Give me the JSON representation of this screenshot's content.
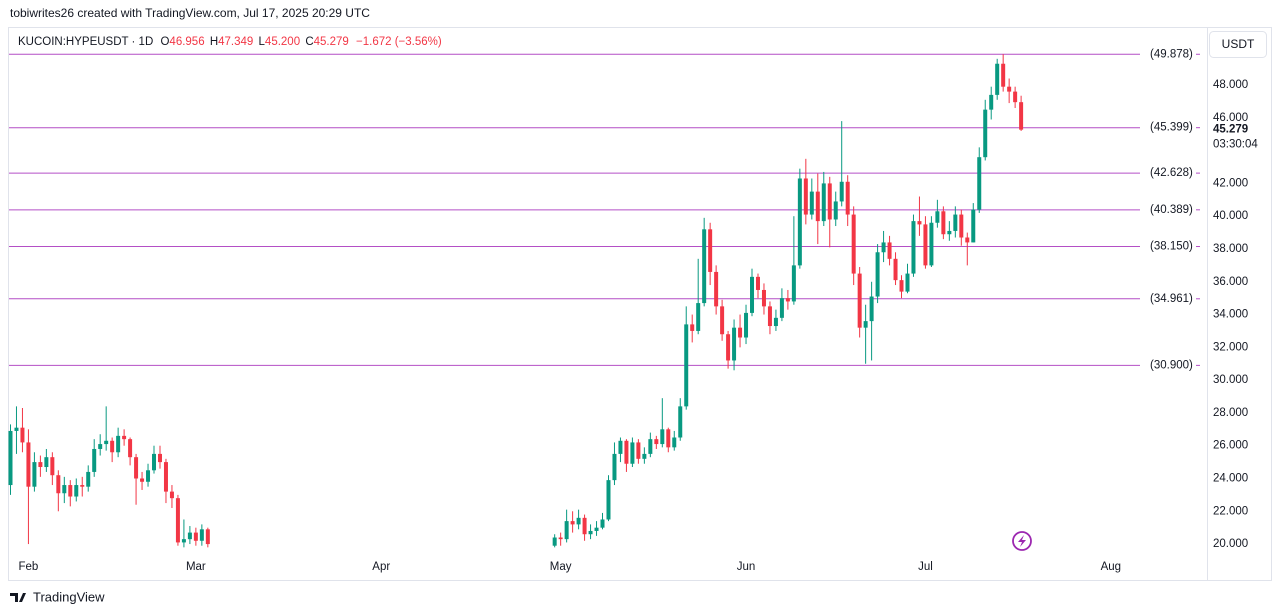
{
  "chart_data": {
    "type": "candlestick",
    "attribution": "tobiwrites26 created with TradingView.com, Jul 17, 2025 20:29 UTC",
    "legend": {
      "symbol": "KUCOIN:HYPEUSDT · 1D",
      "fields": [
        {
          "key": "O",
          "value": "46.956"
        },
        {
          "key": "H",
          "value": "47.349"
        },
        {
          "key": "L",
          "value": "45.200"
        },
        {
          "key": "C",
          "value": "45.279"
        }
      ],
      "change": "−1.672 (−3.56%)"
    },
    "currency": "USDT",
    "last_price": 45.279,
    "last_price_label": "45.279",
    "countdown": "03:30:04",
    "brand": "TradingView",
    "up_color": "#089981",
    "down_color": "#f23645",
    "level_color": "#b44fc6",
    "grid": false,
    "ylim": [
      19.15,
      51.48
    ],
    "yticks": [
      {
        "value": 20,
        "label": "20.000"
      },
      {
        "value": 22,
        "label": "22.000"
      },
      {
        "value": 24,
        "label": "24.000"
      },
      {
        "value": 26,
        "label": "26.000"
      },
      {
        "value": 28,
        "label": "28.000"
      },
      {
        "value": 30,
        "label": "30.000"
      },
      {
        "value": 32,
        "label": "32.000"
      },
      {
        "value": 34,
        "label": "34.000"
      },
      {
        "value": 36,
        "label": "36.000"
      },
      {
        "value": 38,
        "label": "38.000"
      },
      {
        "value": 40,
        "label": "40.000"
      },
      {
        "value": 42,
        "label": "42.000"
      },
      {
        "value": 46,
        "label": "46.000"
      },
      {
        "value": 48,
        "label": "48.000"
      }
    ],
    "levels": [
      {
        "value": 49.878,
        "label": "(49.878)"
      },
      {
        "value": 45.399,
        "label": "(45.399)"
      },
      {
        "value": 42.628,
        "label": "(42.628)"
      },
      {
        "value": 40.389,
        "label": "(40.389)"
      },
      {
        "value": 38.15,
        "label": "(38.150)"
      },
      {
        "value": 34.961,
        "label": "(34.961)"
      },
      {
        "value": 30.9,
        "label": "(30.900)"
      }
    ],
    "categories": [
      null,
      null,
      null,
      "Feb",
      null,
      null,
      null,
      null,
      null,
      null,
      null,
      null,
      null,
      null,
      null,
      null,
      null,
      null,
      null,
      null,
      null,
      null,
      null,
      null,
      null,
      null,
      null,
      null,
      null,
      null,
      null,
      "Mar",
      null,
      null,
      null,
      null,
      null,
      null,
      null,
      null,
      null,
      null,
      null,
      null,
      null,
      null,
      null,
      null,
      null,
      null,
      null,
      null,
      null,
      null,
      null,
      null,
      null,
      null,
      null,
      null,
      null,
      null,
      "Apr",
      null,
      null,
      null,
      null,
      null,
      null,
      null,
      null,
      null,
      null,
      null,
      null,
      null,
      null,
      null,
      null,
      null,
      null,
      null,
      null,
      null,
      null,
      null,
      null,
      null,
      null,
      null,
      null,
      null,
      "May",
      null,
      null,
      null,
      null,
      null,
      null,
      null,
      null,
      null,
      null,
      null,
      null,
      null,
      null,
      null,
      null,
      null,
      null,
      null,
      null,
      null,
      null,
      null,
      null,
      null,
      null,
      null,
      null,
      null,
      null,
      "Jun",
      null,
      null,
      null,
      null,
      null,
      null,
      null,
      null,
      null,
      null,
      null,
      null,
      null,
      null,
      null,
      null,
      null,
      null,
      null,
      null,
      null,
      null,
      null,
      null,
      null,
      null,
      null,
      null,
      null,
      "Jul",
      null,
      null,
      null,
      null,
      null,
      null,
      null,
      null,
      null,
      null,
      null,
      null,
      null,
      null,
      null,
      null,
      null,
      null,
      null,
      null,
      null,
      null,
      null,
      null,
      null,
      null,
      null,
      null,
      null,
      null,
      "Aug"
    ],
    "open": [
      23.6,
      26.9,
      27.1,
      26.2,
      23.5,
      25.0,
      24.7,
      25.3,
      24.2,
      23.1,
      23.6,
      22.9,
      23.6,
      23.5,
      24.4,
      25.8,
      26.1,
      26.3,
      25.6,
      26.6,
      26.4,
      25.3,
      24.0,
      23.8,
      24.5,
      25.5,
      25.0,
      23.2,
      22.8,
      20.1,
      20.3,
      20.7,
      20.2,
      20.9,
      null,
      null,
      null,
      null,
      null,
      null,
      null,
      null,
      null,
      null,
      null,
      null,
      null,
      null,
      null,
      null,
      null,
      null,
      null,
      null,
      null,
      null,
      null,
      null,
      null,
      null,
      null,
      null,
      null,
      null,
      null,
      null,
      null,
      null,
      null,
      null,
      null,
      null,
      null,
      null,
      null,
      null,
      null,
      null,
      null,
      null,
      null,
      null,
      null,
      null,
      null,
      null,
      null,
      null,
      null,
      null,
      null,
      19.9,
      20.4,
      20.3,
      21.4,
      21.2,
      21.6,
      20.6,
      20.8,
      21.0,
      21.5,
      23.9,
      25.5,
      26.3,
      24.9,
      26.2,
      25.2,
      25.5,
      26.4,
      26.1,
      27.0,
      25.9,
      26.5,
      28.4,
      33.4,
      33.0,
      34.7,
      39.2,
      36.6,
      34.5,
      32.8,
      31.2,
      33.2,
      32.6,
      34.1,
      36.3,
      35.5,
      34.5,
      33.3,
      33.8,
      35.0,
      34.8,
      37.0,
      42.3,
      40.1,
      41.5,
      39.7,
      42.0,
      39.8,
      40.9,
      42.1,
      40.1,
      36.5,
      33.2,
      33.6,
      35.1,
      37.8,
      38.4,
      37.4,
      36.1,
      35.4,
      36.5,
      39.7,
      39.5,
      37.0,
      39.6,
      40.3,
      38.9,
      39.1,
      40.1,
      38.7,
      38.4,
      40.4,
      43.6,
      46.5,
      47.4,
      49.3,
      47.9,
      47.6,
      46.956,
      null,
      null,
      null,
      null,
      null,
      null,
      null,
      null,
      null,
      null,
      null,
      null,
      null,
      null,
      null
    ],
    "high": [
      27.3,
      28.4,
      28.3,
      27.0,
      25.6,
      25.4,
      25.8,
      25.6,
      24.5,
      24.1,
      23.9,
      24.0,
      24.1,
      24.8,
      26.4,
      26.7,
      28.4,
      26.5,
      27.1,
      27.0,
      26.5,
      25.5,
      24.4,
      24.9,
      26.0,
      26.0,
      25.2,
      23.6,
      23.0,
      21.5,
      21.1,
      21.0,
      21.2,
      21.0,
      null,
      null,
      null,
      null,
      null,
      null,
      null,
      null,
      null,
      null,
      null,
      null,
      null,
      null,
      null,
      null,
      null,
      null,
      null,
      null,
      null,
      null,
      null,
      null,
      null,
      null,
      null,
      null,
      null,
      null,
      null,
      null,
      null,
      null,
      null,
      null,
      null,
      null,
      null,
      null,
      null,
      null,
      null,
      null,
      null,
      null,
      null,
      null,
      null,
      null,
      null,
      null,
      null,
      null,
      null,
      null,
      null,
      20.6,
      20.7,
      22.1,
      22.0,
      22.1,
      21.8,
      21.2,
      21.4,
      21.9,
      24.2,
      26.2,
      26.5,
      26.4,
      26.5,
      26.4,
      25.9,
      26.8,
      26.6,
      28.9,
      27.1,
      26.9,
      28.9,
      34.5,
      34.0,
      37.4,
      39.9,
      39.6,
      37.0,
      34.9,
      33.0,
      33.7,
      34.0,
      34.6,
      36.8,
      36.5,
      35.9,
      34.8,
      34.3,
      35.6,
      35.5,
      40.0,
      42.9,
      43.5,
      42.3,
      42.6,
      42.7,
      42.4,
      41.5,
      45.8,
      42.5,
      40.6,
      36.9,
      34.6,
      36.0,
      38.3,
      39.1,
      38.8,
      37.8,
      36.4,
      37.1,
      40.1,
      41.2,
      40.0,
      40.0,
      41.0,
      40.6,
      39.7,
      40.6,
      40.4,
      39.0,
      40.8,
      44.2,
      47.1,
      47.9,
      49.6,
      49.88,
      48.4,
      47.9,
      47.349,
      null,
      null,
      null,
      null,
      null,
      null,
      null,
      null,
      null,
      null,
      null,
      null,
      null,
      null,
      null
    ],
    "low": [
      23.0,
      25.5,
      25.6,
      20.0,
      23.2,
      24.1,
      24.4,
      23.6,
      22.0,
      22.5,
      22.3,
      22.6,
      22.9,
      23.2,
      24.1,
      25.4,
      25.7,
      25.0,
      25.3,
      26.0,
      24.8,
      22.4,
      23.3,
      23.5,
      24.3,
      24.6,
      22.5,
      22.2,
      19.9,
      19.8,
      20.0,
      19.9,
      19.9,
      19.8,
      null,
      null,
      null,
      null,
      null,
      null,
      null,
      null,
      null,
      null,
      null,
      null,
      null,
      null,
      null,
      null,
      null,
      null,
      null,
      null,
      null,
      null,
      null,
      null,
      null,
      null,
      null,
      null,
      null,
      null,
      null,
      null,
      null,
      null,
      null,
      null,
      null,
      null,
      null,
      null,
      null,
      null,
      null,
      null,
      null,
      null,
      null,
      null,
      null,
      null,
      null,
      null,
      null,
      null,
      null,
      null,
      null,
      19.8,
      19.9,
      20.1,
      20.7,
      20.9,
      20.2,
      20.3,
      20.5,
      20.9,
      21.4,
      23.6,
      25.0,
      24.4,
      24.7,
      24.9,
      24.9,
      25.3,
      25.8,
      25.9,
      25.6,
      25.7,
      26.3,
      28.2,
      32.3,
      32.8,
      34.5,
      35.8,
      34.0,
      32.4,
      30.7,
      30.6,
      32.0,
      32.2,
      33.9,
      35.0,
      34.0,
      32.8,
      33.0,
      33.6,
      34.3,
      34.6,
      36.8,
      39.5,
      39.8,
      38.3,
      39.4,
      38.1,
      39.4,
      40.6,
      39.4,
      35.8,
      32.6,
      31.0,
      31.2,
      34.7,
      37.2,
      37.0,
      35.8,
      35.0,
      35.3,
      36.3,
      38.8,
      36.8,
      36.9,
      39.3,
      38.6,
      38.5,
      38.7,
      38.2,
      37.0,
      38.4,
      40.2,
      43.4,
      45.9,
      47.1,
      47.6,
      46.9,
      46.6,
      45.2,
      null,
      null,
      null,
      null,
      null,
      null,
      null,
      null,
      null,
      null,
      null,
      null,
      null,
      null,
      null
    ],
    "close": [
      26.9,
      27.1,
      26.2,
      23.5,
      25.0,
      24.7,
      25.3,
      24.2,
      23.1,
      23.6,
      22.9,
      23.6,
      23.5,
      24.4,
      25.8,
      26.1,
      26.3,
      25.6,
      26.6,
      26.4,
      25.3,
      24.0,
      23.8,
      24.5,
      25.5,
      25.0,
      23.2,
      22.8,
      20.1,
      20.3,
      20.7,
      20.2,
      20.9,
      20.0,
      null,
      null,
      null,
      null,
      null,
      null,
      null,
      null,
      null,
      null,
      null,
      null,
      null,
      null,
      null,
      null,
      null,
      null,
      null,
      null,
      null,
      null,
      null,
      null,
      null,
      null,
      null,
      null,
      null,
      null,
      null,
      null,
      null,
      null,
      null,
      null,
      null,
      null,
      null,
      null,
      null,
      null,
      null,
      null,
      null,
      null,
      null,
      null,
      null,
      null,
      null,
      null,
      null,
      null,
      null,
      null,
      null,
      20.4,
      20.3,
      21.4,
      21.2,
      21.6,
      20.6,
      20.8,
      21.0,
      21.5,
      23.9,
      25.5,
      26.3,
      24.9,
      26.2,
      25.2,
      25.5,
      26.4,
      26.1,
      27.0,
      25.9,
      26.5,
      28.4,
      33.4,
      33.0,
      34.7,
      39.2,
      36.6,
      34.5,
      32.8,
      31.2,
      33.2,
      32.6,
      34.1,
      36.3,
      35.5,
      34.5,
      33.3,
      33.8,
      35.0,
      34.8,
      37.0,
      42.3,
      40.1,
      41.5,
      39.7,
      42.0,
      39.8,
      40.9,
      42.1,
      40.1,
      36.5,
      33.2,
      33.6,
      35.1,
      37.8,
      38.4,
      37.4,
      36.1,
      35.4,
      36.5,
      39.7,
      39.5,
      37.0,
      39.6,
      40.3,
      38.9,
      39.1,
      40.1,
      38.7,
      38.4,
      40.4,
      43.6,
      46.5,
      47.4,
      49.3,
      47.9,
      47.6,
      46.956,
      45.279,
      null,
      null,
      null,
      null,
      null,
      null,
      null,
      null,
      null,
      null,
      null,
      null,
      null,
      null,
      null
    ]
  }
}
